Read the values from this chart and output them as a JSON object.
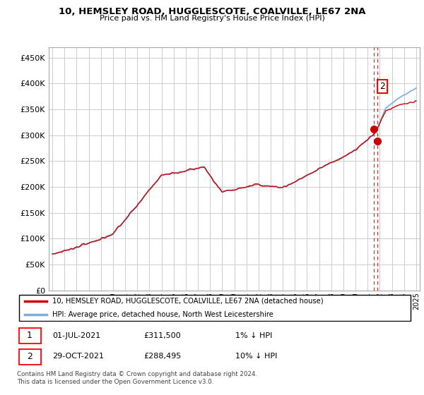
{
  "title": "10, HEMSLEY ROAD, HUGGLESCOTE, COALVILLE, LE67 2NA",
  "subtitle": "Price paid vs. HM Land Registry's House Price Index (HPI)",
  "ylim": [
    0,
    470000
  ],
  "yticks": [
    0,
    50000,
    100000,
    150000,
    200000,
    250000,
    300000,
    350000,
    400000,
    450000
  ],
  "hpi_color": "#7aaddb",
  "price_color": "#cc0000",
  "vline_color": "#cc0000",
  "transaction1_price": 311500,
  "transaction2_price": 288495,
  "transaction1_year": 2021.5,
  "transaction2_year": 2021.83,
  "transaction1_date": "01-JUL-2021",
  "transaction2_date": "29-OCT-2021",
  "transaction1_label": "1% ↓ HPI",
  "transaction2_label": "10% ↓ HPI",
  "footer": "Contains HM Land Registry data © Crown copyright and database right 2024.\nThis data is licensed under the Open Government Licence v3.0.",
  "legend_line1": "10, HEMSLEY ROAD, HUGGLESCOTE, COALVILLE, LE67 2NA (detached house)",
  "legend_line2": "HPI: Average price, detached house, North West Leicestershire",
  "background_color": "#ffffff",
  "grid_color": "#cccccc",
  "xlim_start": 1994.7,
  "xlim_end": 2025.3
}
